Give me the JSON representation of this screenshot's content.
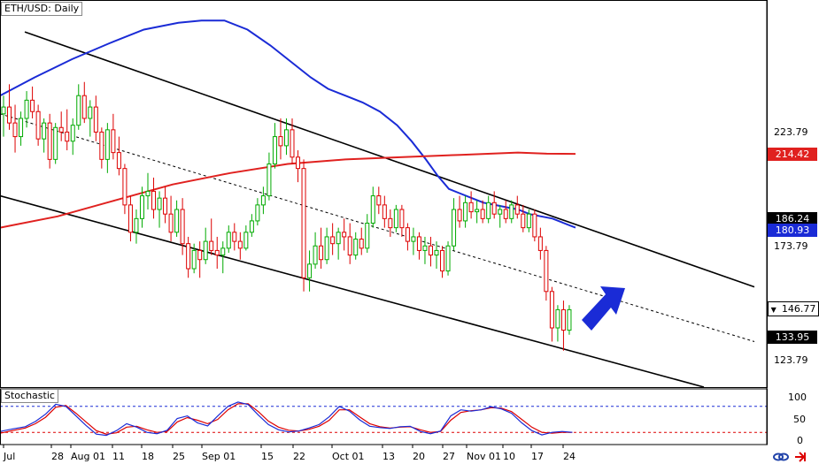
{
  "chart_data": {
    "type": "candlestick",
    "title": "ETH/USD: Daily",
    "indicator_title": "Stochastic",
    "x_tick_labels": [
      "Jul",
      "28",
      "Aug 01",
      "11",
      "18",
      "25",
      "Sep 01",
      "15",
      "22",
      "Oct 01",
      "13",
      "20",
      "27",
      "Nov 01",
      "10",
      "17",
      "24"
    ],
    "price_axis_labels": [
      223.79,
      173.79,
      123.79
    ],
    "price_tags": [
      {
        "value": "214.42",
        "bg": "#e0211f",
        "fg": "#ffffff"
      },
      {
        "value": "186.24",
        "bg": "#000000",
        "fg": "#ffffff"
      },
      {
        "value": "180.93",
        "bg": "#1a2bd6",
        "fg": "#ffffff"
      },
      {
        "value": "146.77",
        "bg": "#ffffff",
        "fg": "#000000",
        "marker": "▼"
      },
      {
        "value": "133.95",
        "bg": "#000000",
        "fg": "#ffffff"
      }
    ],
    "stoch_axis_labels": [
      100,
      50,
      0
    ],
    "stoch_levels": [
      80,
      20
    ],
    "ylim": [
      112,
      282
    ],
    "series": [
      {
        "color": "#1a2bd6",
        "points": [
          [
            0,
            240
          ],
          [
            12,
            248
          ],
          [
            25,
            256
          ],
          [
            38,
            263
          ],
          [
            50,
            269
          ],
          [
            62,
            272
          ],
          [
            70,
            273
          ],
          [
            78,
            273
          ],
          [
            86,
            269
          ],
          [
            94,
            262
          ],
          [
            101,
            255
          ],
          [
            108,
            248
          ],
          [
            114,
            243
          ],
          [
            120,
            240
          ],
          [
            126,
            237
          ],
          [
            132,
            233
          ],
          [
            138,
            227
          ],
          [
            143,
            220
          ],
          [
            148,
            212
          ],
          [
            152,
            205
          ],
          [
            156,
            199
          ],
          [
            160,
            197
          ],
          [
            164,
            195
          ],
          [
            168,
            193
          ],
          [
            172,
            192
          ],
          [
            176,
            191
          ],
          [
            180,
            190
          ],
          [
            184,
            188
          ],
          [
            188,
            187
          ],
          [
            192,
            186
          ],
          [
            196,
            184
          ],
          [
            200,
            182
          ]
        ]
      },
      {
        "color": "#e0211f",
        "points": [
          [
            0,
            182
          ],
          [
            20,
            187
          ],
          [
            40,
            194
          ],
          [
            60,
            201
          ],
          [
            80,
            206
          ],
          [
            100,
            210
          ],
          [
            120,
            212
          ],
          [
            140,
            213
          ],
          [
            160,
            214
          ],
          [
            180,
            215
          ],
          [
            190,
            214.5
          ],
          [
            200,
            214.42
          ]
        ]
      }
    ],
    "candles": [
      [
        0,
        232,
        240,
        222,
        235
      ],
      [
        1,
        235,
        245,
        225,
        228
      ],
      [
        2,
        228,
        236,
        215,
        222
      ],
      [
        3,
        222,
        233,
        218,
        230
      ],
      [
        4,
        230,
        242,
        226,
        238
      ],
      [
        5,
        238,
        244,
        230,
        233
      ],
      [
        6,
        233,
        236,
        218,
        221
      ],
      [
        7,
        221,
        230,
        215,
        228
      ],
      [
        8,
        228,
        232,
        208,
        212
      ],
      [
        9,
        212,
        228,
        210,
        226
      ],
      [
        10,
        226,
        233,
        220,
        224
      ],
      [
        11,
        224,
        234,
        216,
        220
      ],
      [
        12,
        220,
        230,
        214,
        227
      ],
      [
        13,
        227,
        245,
        225,
        240
      ],
      [
        14,
        240,
        246,
        228,
        230
      ],
      [
        15,
        230,
        238,
        222,
        235
      ],
      [
        16,
        235,
        240,
        220,
        224
      ],
      [
        17,
        224,
        226,
        208,
        212
      ],
      [
        18,
        212,
        228,
        206,
        225
      ],
      [
        19,
        225,
        232,
        212,
        215
      ],
      [
        20,
        215,
        222,
        205,
        208
      ],
      [
        21,
        208,
        210,
        188,
        192
      ],
      [
        22,
        192,
        196,
        176,
        180
      ],
      [
        23,
        180,
        190,
        175,
        186
      ],
      [
        24,
        186,
        200,
        182,
        196
      ],
      [
        25,
        196,
        206,
        190,
        198
      ],
      [
        26,
        198,
        204,
        186,
        190
      ],
      [
        27,
        190,
        198,
        182,
        195
      ],
      [
        28,
        195,
        200,
        184,
        188
      ],
      [
        29,
        188,
        196,
        176,
        180
      ],
      [
        30,
        180,
        194,
        178,
        190
      ],
      [
        31,
        190,
        195,
        170,
        175
      ],
      [
        32,
        175,
        178,
        160,
        164
      ],
      [
        33,
        164,
        175,
        162,
        172
      ],
      [
        34,
        172,
        176,
        160,
        168
      ],
      [
        35,
        168,
        182,
        166,
        176
      ],
      [
        36,
        176,
        186,
        170,
        172
      ],
      [
        37,
        172,
        178,
        164,
        170
      ],
      [
        38,
        170,
        176,
        162,
        173
      ],
      [
        39,
        173,
        183,
        171,
        180
      ],
      [
        40,
        180,
        184,
        172,
        176
      ],
      [
        41,
        176,
        180,
        168,
        173
      ],
      [
        42,
        173,
        183,
        172,
        180
      ],
      [
        43,
        180,
        188,
        178,
        185
      ],
      [
        44,
        185,
        195,
        183,
        192
      ],
      [
        45,
        192,
        200,
        188,
        196
      ],
      [
        46,
        196,
        215,
        194,
        210
      ],
      [
        47,
        210,
        228,
        208,
        222
      ],
      [
        48,
        222,
        230,
        212,
        218
      ],
      [
        49,
        218,
        230,
        214,
        225
      ],
      [
        50,
        225,
        230,
        210,
        213
      ],
      [
        51,
        213,
        216,
        202,
        208
      ],
      [
        52,
        208,
        212,
        154,
        160
      ],
      [
        53,
        160,
        172,
        154,
        166
      ],
      [
        54,
        166,
        180,
        164,
        174
      ],
      [
        55,
        174,
        182,
        164,
        168
      ],
      [
        56,
        168,
        182,
        166,
        178
      ],
      [
        57,
        178,
        184,
        170,
        175
      ],
      [
        58,
        175,
        182,
        168,
        180
      ],
      [
        59,
        180,
        186,
        172,
        178
      ],
      [
        60,
        178,
        184,
        166,
        170
      ],
      [
        61,
        170,
        180,
        168,
        177
      ],
      [
        62,
        177,
        182,
        170,
        173
      ],
      [
        63,
        173,
        188,
        171,
        184
      ],
      [
        64,
        184,
        200,
        182,
        196
      ],
      [
        65,
        196,
        200,
        188,
        192
      ],
      [
        66,
        192,
        196,
        182,
        186
      ],
      [
        67,
        186,
        190,
        178,
        182
      ],
      [
        68,
        182,
        192,
        180,
        190
      ],
      [
        69,
        190,
        192,
        178,
        182
      ],
      [
        70,
        182,
        184,
        172,
        176
      ],
      [
        71,
        176,
        182,
        170,
        178
      ],
      [
        72,
        178,
        180,
        168,
        172
      ],
      [
        73,
        172,
        178,
        166,
        174
      ],
      [
        74,
        174,
        178,
        165,
        170
      ],
      [
        75,
        170,
        176,
        164,
        172
      ],
      [
        76,
        172,
        174,
        160,
        163
      ],
      [
        77,
        163,
        176,
        161,
        174
      ],
      [
        78,
        174,
        195,
        172,
        190
      ],
      [
        79,
        190,
        196,
        182,
        185
      ],
      [
        80,
        185,
        196,
        182,
        193
      ],
      [
        81,
        193,
        198,
        186,
        189
      ],
      [
        82,
        189,
        194,
        184,
        190
      ],
      [
        83,
        190,
        194,
        184,
        186
      ],
      [
        84,
        186,
        196,
        184,
        193
      ],
      [
        85,
        193,
        198,
        186,
        188
      ],
      [
        86,
        188,
        192,
        182,
        190
      ],
      [
        87,
        190,
        194,
        184,
        186
      ],
      [
        88,
        186,
        194,
        184,
        192
      ],
      [
        89,
        192,
        196,
        186,
        188
      ],
      [
        90,
        188,
        192,
        180,
        182
      ],
      [
        91,
        182,
        190,
        180,
        188
      ],
      [
        92,
        188,
        190,
        176,
        178
      ],
      [
        93,
        178,
        182,
        168,
        172
      ],
      [
        94,
        172,
        174,
        150,
        154
      ],
      [
        95,
        154,
        156,
        132,
        138
      ],
      [
        96,
        138,
        148,
        132,
        146
      ],
      [
        97,
        146,
        150,
        128,
        137
      ],
      [
        98,
        137,
        148,
        135,
        146
      ]
    ],
    "stochastic": {
      "k": [
        [
          0,
          22
        ],
        [
          5,
          28
        ],
        [
          10,
          33
        ],
        [
          14,
          45
        ],
        [
          18,
          62
        ],
        [
          22,
          85
        ],
        [
          26,
          80
        ],
        [
          30,
          58
        ],
        [
          34,
          36
        ],
        [
          38,
          16
        ],
        [
          42,
          13
        ],
        [
          46,
          24
        ],
        [
          50,
          40
        ],
        [
          54,
          32
        ],
        [
          58,
          20
        ],
        [
          62,
          17
        ],
        [
          66,
          25
        ],
        [
          70,
          52
        ],
        [
          74,
          58
        ],
        [
          78,
          42
        ],
        [
          82,
          35
        ],
        [
          86,
          58
        ],
        [
          90,
          80
        ],
        [
          94,
          90
        ],
        [
          98,
          84
        ],
        [
          102,
          60
        ],
        [
          106,
          38
        ],
        [
          110,
          26
        ],
        [
          114,
          21
        ],
        [
          118,
          23
        ],
        [
          122,
          30
        ],
        [
          126,
          38
        ],
        [
          130,
          56
        ],
        [
          134,
          80
        ],
        [
          138,
          69
        ],
        [
          142,
          49
        ],
        [
          146,
          34
        ],
        [
          150,
          31
        ],
        [
          154,
          29
        ],
        [
          158,
          33
        ],
        [
          162,
          34
        ],
        [
          166,
          22
        ],
        [
          170,
          17
        ],
        [
          174,
          23
        ],
        [
          178,
          58
        ],
        [
          182,
          72
        ],
        [
          186,
          69
        ],
        [
          190,
          72
        ],
        [
          194,
          79
        ],
        [
          198,
          74
        ],
        [
          202,
          64
        ],
        [
          206,
          42
        ],
        [
          210,
          24
        ],
        [
          214,
          14
        ],
        [
          218,
          20
        ],
        [
          222,
          22
        ],
        [
          226,
          20
        ]
      ],
      "d": [
        [
          0,
          18
        ],
        [
          5,
          24
        ],
        [
          10,
          30
        ],
        [
          14,
          40
        ],
        [
          18,
          55
        ],
        [
          22,
          78
        ],
        [
          26,
          82
        ],
        [
          30,
          64
        ],
        [
          34,
          44
        ],
        [
          38,
          24
        ],
        [
          42,
          16
        ],
        [
          46,
          19
        ],
        [
          50,
          32
        ],
        [
          54,
          34
        ],
        [
          58,
          26
        ],
        [
          62,
          20
        ],
        [
          66,
          22
        ],
        [
          70,
          44
        ],
        [
          74,
          54
        ],
        [
          78,
          48
        ],
        [
          82,
          40
        ],
        [
          86,
          50
        ],
        [
          90,
          72
        ],
        [
          94,
          86
        ],
        [
          98,
          86
        ],
        [
          102,
          68
        ],
        [
          106,
          46
        ],
        [
          110,
          32
        ],
        [
          114,
          25
        ],
        [
          118,
          23
        ],
        [
          122,
          27
        ],
        [
          126,
          34
        ],
        [
          130,
          48
        ],
        [
          134,
          72
        ],
        [
          138,
          72
        ],
        [
          142,
          56
        ],
        [
          146,
          40
        ],
        [
          150,
          33
        ],
        [
          154,
          30
        ],
        [
          158,
          32
        ],
        [
          162,
          33
        ],
        [
          166,
          26
        ],
        [
          170,
          20
        ],
        [
          174,
          22
        ],
        [
          178,
          48
        ],
        [
          182,
          66
        ],
        [
          186,
          70
        ],
        [
          190,
          72
        ],
        [
          194,
          77
        ],
        [
          198,
          76
        ],
        [
          202,
          68
        ],
        [
          206,
          50
        ],
        [
          210,
          32
        ],
        [
          214,
          20
        ],
        [
          218,
          18
        ],
        [
          222,
          20
        ],
        [
          226,
          20
        ]
      ]
    },
    "colors": {
      "bull": "#00aa00",
      "bear": "#dd0000",
      "background": "#ffffff",
      "frame": "#000000",
      "grid": false
    }
  }
}
